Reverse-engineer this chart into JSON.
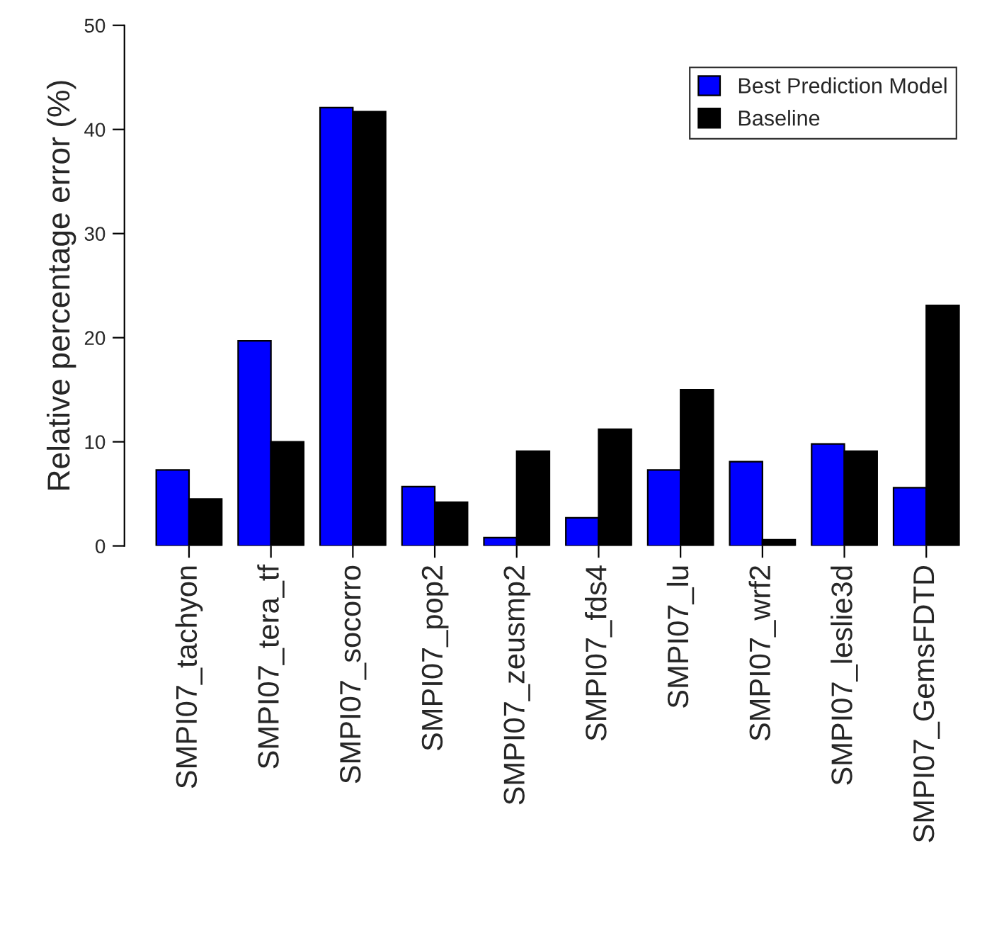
{
  "chart_data": {
    "type": "bar",
    "ylabel": "Relative percentage error (%)",
    "categories": [
      "SMPI07_tachyon",
      "SMPI07_tera_tf",
      "SMPI07_socorro",
      "SMPI07_pop2",
      "SMPI07_zeusmp2",
      "SMPI07_fds4",
      "SMPI07_lu",
      "SMPI07_wrf2",
      "SMPI07_leslie3d",
      "SMPI07_GemsFDTD"
    ],
    "series": [
      {
        "name": "Best Prediction Model",
        "color": "#0000ff",
        "values": [
          7.3,
          19.7,
          42.1,
          5.7,
          0.8,
          2.7,
          7.3,
          8.1,
          9.8,
          5.6
        ]
      },
      {
        "name": "Baseline",
        "color": "#000000",
        "values": [
          4.5,
          10.0,
          41.7,
          4.2,
          9.1,
          11.2,
          15.0,
          0.6,
          9.1,
          23.1
        ]
      }
    ],
    "ylim": [
      0,
      50
    ],
    "yticks": [
      0,
      10,
      20,
      30,
      40,
      50
    ],
    "grid": false,
    "legend": "top right"
  }
}
